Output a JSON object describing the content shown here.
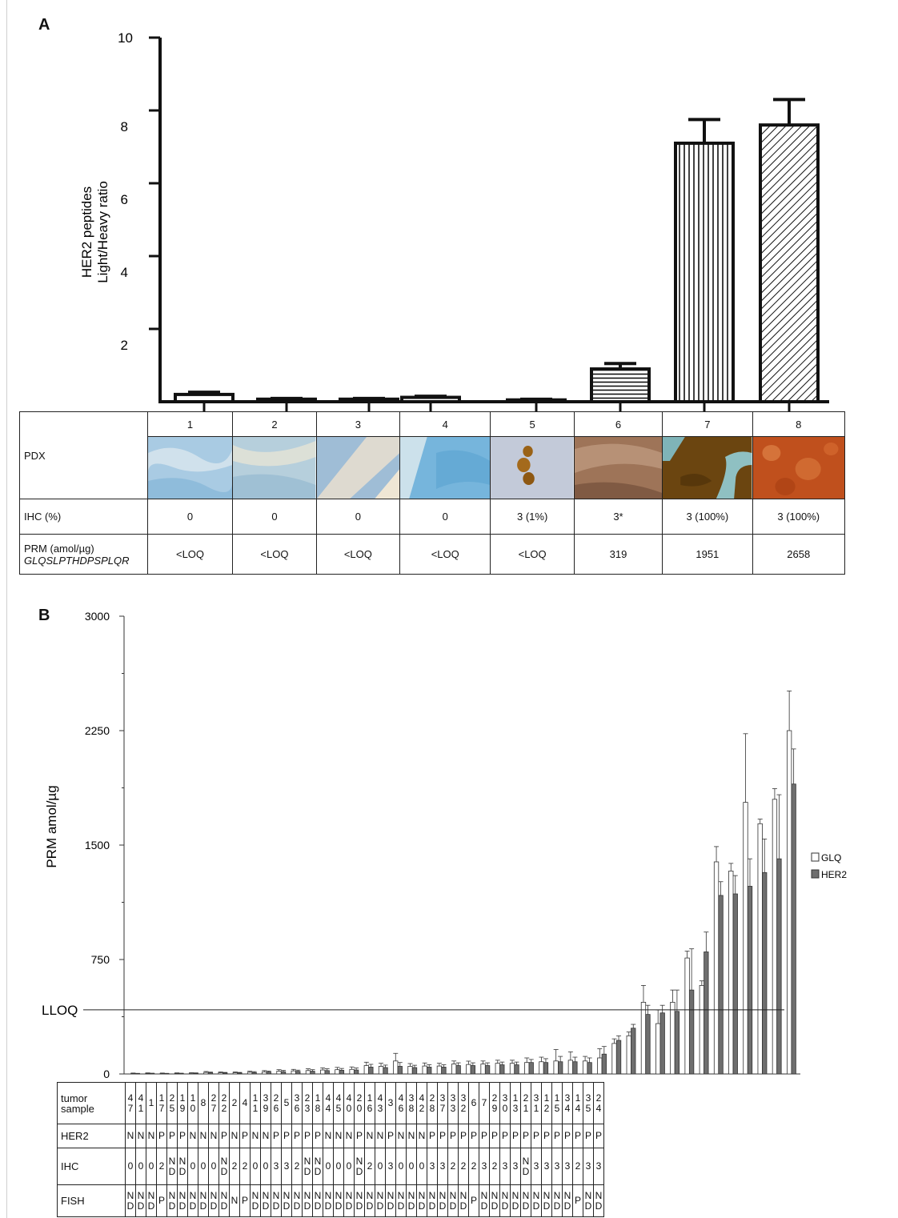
{
  "panel_a": {
    "letter": "A",
    "ylabel_line1": "HER2 peptides",
    "ylabel_line2": "Light/Heavy ratio",
    "table": {
      "labels": {
        "pdx": "PDX",
        "ihc": "IHC (%)",
        "prm_line1": "PRM (amol/µg)",
        "prm_line2": "GLQSLPTHDPSPLQR"
      },
      "pdx_ids": [
        "1",
        "2",
        "3",
        "4",
        "5",
        "6",
        "7",
        "8"
      ],
      "ihc_values": [
        "0",
        "0",
        "0",
        "0",
        "3 (1%)",
        "3*",
        "3 (100%)",
        "3 (100%)"
      ],
      "prm_values": [
        "<LOQ",
        "<LOQ",
        "<LOQ",
        "<LOQ",
        "<LOQ",
        "319",
        "1951",
        "2658"
      ]
    }
  },
  "panel_b": {
    "letter": "B",
    "ylabel": "PRM amol/µg",
    "lloq_label": "LLOQ",
    "legend": [
      "GLQ",
      "HER2"
    ],
    "row_labels": [
      "tumor\nsample",
      "HER2",
      "IHC",
      "FISH"
    ],
    "tumor_samples": [
      "47",
      "41",
      "1",
      "17",
      "25",
      "19",
      "10",
      "8",
      "27",
      "22",
      "2",
      "4",
      "11",
      "39",
      "26",
      "5",
      "36",
      "23",
      "18",
      "44",
      "45",
      "40",
      "20",
      "16",
      "43",
      "3",
      "46",
      "38",
      "42",
      "28",
      "37",
      "33",
      "32",
      "6",
      "7",
      "29",
      "30",
      "13",
      "21",
      "31",
      "12",
      "15",
      "34",
      "14",
      "35",
      "24"
    ],
    "her2": [
      "N",
      "N",
      "N",
      "P",
      "P",
      "P",
      "N",
      "N",
      "N",
      "P",
      "N",
      "P",
      "N",
      "N",
      "P",
      "P",
      "P",
      "P",
      "P",
      "N",
      "N",
      "N",
      "P",
      "N",
      "N",
      "P",
      "N",
      "N",
      "N",
      "P",
      "P",
      "P",
      "P",
      "P",
      "P",
      "P",
      "P",
      "P",
      "P",
      "P",
      "P",
      "P",
      "P",
      "P",
      "P",
      "P"
    ],
    "ihc": [
      "0",
      "0",
      "0",
      "2",
      "ND",
      "ND",
      "0",
      "0",
      "0",
      "ND",
      "2",
      "2",
      "0",
      "0",
      "3",
      "3",
      "2",
      "ND",
      "ND",
      "0",
      "0",
      "0",
      "ND",
      "2",
      "0",
      "3",
      "0",
      "0",
      "0",
      "3",
      "3",
      "2",
      "2",
      "2",
      "3",
      "2",
      "3",
      "3",
      "ND",
      "3",
      "3",
      "3",
      "3",
      "2",
      "3",
      "3"
    ],
    "fish": [
      "ND",
      "ND",
      "ND",
      "P",
      "ND",
      "ND",
      "ND",
      "ND",
      "ND",
      "ND",
      "N",
      "P",
      "ND",
      "ND",
      "ND",
      "ND",
      "ND",
      "ND",
      "ND",
      "ND",
      "ND",
      "ND",
      "ND",
      "ND",
      "ND",
      "ND",
      "ND",
      "ND",
      "ND",
      "ND",
      "ND",
      "ND",
      "ND",
      "P",
      "ND",
      "ND",
      "ND",
      "ND",
      "ND",
      "ND",
      "ND",
      "ND",
      "ND",
      "P",
      "ND",
      "ND"
    ]
  },
  "chart_data": [
    {
      "type": "bar",
      "categories": [
        "1",
        "2",
        "3",
        "4",
        "5",
        "6",
        "7",
        "8"
      ],
      "values": [
        0.2,
        0.07,
        0.07,
        0.12,
        0.05,
        0.9,
        7.1,
        7.6
      ],
      "errors": [
        0.06,
        0.02,
        0.02,
        0.03,
        0.02,
        0.15,
        0.65,
        0.7
      ],
      "patterns": [
        "none",
        "none",
        "none",
        "none",
        "none",
        "horizontal",
        "vertical",
        "diagonal"
      ],
      "xlabel": "",
      "ylabel": "HER2 peptides Light/Heavy ratio",
      "ylim": [
        0,
        10
      ],
      "yticks": [
        2,
        4,
        6,
        8,
        10
      ],
      "grid": false
    },
    {
      "type": "bar",
      "categories": [
        "47",
        "41",
        "1",
        "17",
        "25",
        "19",
        "10",
        "8",
        "27",
        "22",
        "2",
        "4",
        "11",
        "39",
        "26",
        "5",
        "36",
        "23",
        "18",
        "44",
        "45",
        "40",
        "20",
        "16",
        "43",
        "3",
        "46",
        "38",
        "42",
        "28",
        "37",
        "33",
        "32",
        "6",
        "7",
        "29",
        "30",
        "13",
        "21",
        "31",
        "12",
        "15",
        "34",
        "14",
        "35",
        "24"
      ],
      "series": [
        {
          "name": "GLQ",
          "color": "#ffffff",
          "values": [
            3,
            4,
            3,
            4,
            5,
            10,
            8,
            8,
            11,
            14,
            18,
            20,
            22,
            26,
            28,
            30,
            55,
            50,
            85,
            50,
            52,
            52,
            65,
            62,
            65,
            70,
            70,
            75,
            80,
            85,
            90,
            85,
            105,
            200,
            250,
            470,
            330,
            470,
            760,
            580,
            1390,
            1330,
            1780,
            1640,
            1800,
            2250
          ],
          "errors": [
            3,
            3,
            3,
            3,
            3,
            6,
            5,
            5,
            7,
            8,
            10,
            10,
            12,
            14,
            15,
            16,
            22,
            20,
            50,
            18,
            20,
            18,
            20,
            22,
            20,
            20,
            20,
            30,
            30,
            75,
            55,
            30,
            60,
            30,
            25,
            110,
            90,
            80,
            45,
            30,
            100,
            50,
            450,
            30,
            70,
            260
          ]
        },
        {
          "name": "HER2",
          "color": "#6e6e6e",
          "values": [
            2,
            3,
            2,
            3,
            4,
            8,
            6,
            6,
            9,
            12,
            15,
            17,
            18,
            22,
            24,
            26,
            45,
            42,
            50,
            42,
            45,
            45,
            55,
            55,
            55,
            60,
            60,
            75,
            75,
            80,
            80,
            75,
            130,
            220,
            300,
            390,
            400,
            410,
            550,
            800,
            1170,
            1180,
            1230,
            1320,
            1410,
            1900
          ],
          "errors": [
            2,
            2,
            2,
            2,
            3,
            4,
            4,
            4,
            6,
            7,
            8,
            8,
            10,
            12,
            12,
            13,
            18,
            16,
            25,
            15,
            16,
            15,
            18,
            18,
            18,
            18,
            18,
            20,
            25,
            35,
            30,
            30,
            50,
            30,
            25,
            60,
            50,
            140,
            270,
            130,
            90,
            120,
            180,
            220,
            420,
            230
          ]
        }
      ],
      "xlabel": "tumor sample",
      "ylabel": "PRM amol/µg",
      "ylim": [
        0,
        3000
      ],
      "yticks": [
        0,
        750,
        1500,
        2250,
        3000
      ],
      "reference_line": {
        "label": "LLOQ",
        "value": 420
      },
      "legend": "right",
      "grid": false
    }
  ]
}
